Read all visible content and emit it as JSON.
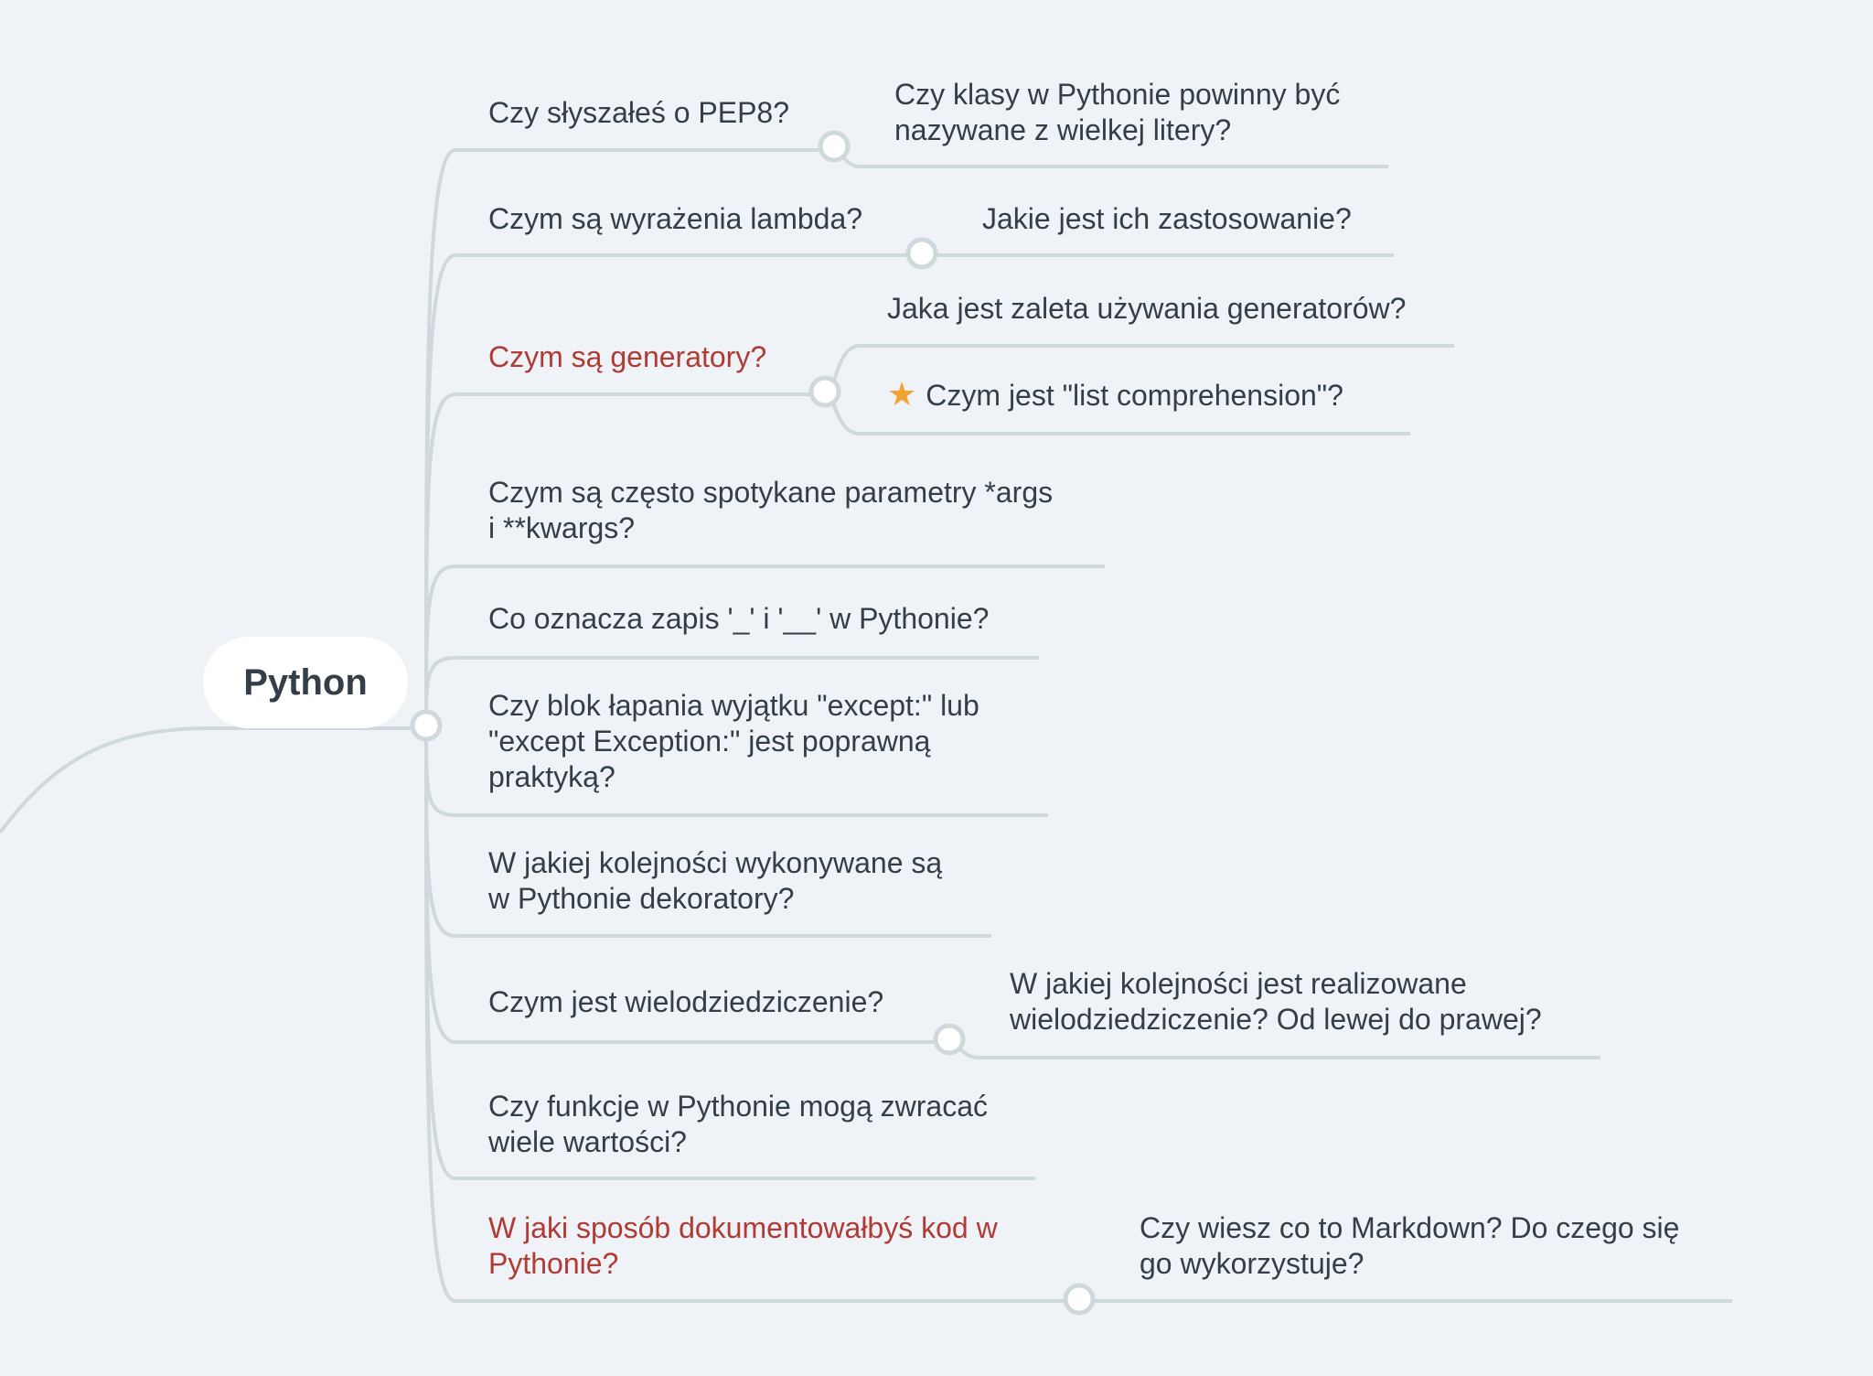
{
  "colors": {
    "background": "#eff3f7",
    "connector": "#cfd8dc",
    "text": "#333e48",
    "accent_text": "#b03a34",
    "star": "#f2a230"
  },
  "root": {
    "label": "Python"
  },
  "topics": [
    {
      "label_lines": [
        "Czy słyszałeś o PEP8?"
      ],
      "accent": false,
      "children": [
        {
          "label_lines": [
            "Czy klasy w Pythonie powinny być",
            "nazywane z wielkej litery?"
          ]
        }
      ]
    },
    {
      "label_lines": [
        "Czym są wyrażenia lambda?"
      ],
      "accent": false,
      "children": [
        {
          "label_lines": [
            "Jakie jest ich zastosowanie?"
          ]
        }
      ]
    },
    {
      "label_lines": [
        "Czym są generatory?"
      ],
      "accent": true,
      "children": [
        {
          "label_lines": [
            "Jaka jest zaleta używania generatorów?"
          ]
        },
        {
          "label_lines": [
            "Czym jest \"list comprehension\"?"
          ],
          "icon": "star-icon"
        }
      ]
    },
    {
      "label_lines": [
        "Czym są często spotykane parametry *args",
        "i **kwargs?"
      ],
      "accent": false
    },
    {
      "label_lines": [
        "Co oznacza zapis '_' i '__' w Pythonie?"
      ],
      "accent": false
    },
    {
      "label_lines": [
        "Czy blok łapania wyjątku \"except:\" lub",
        "\"except Exception:\" jest poprawną",
        "praktyką?"
      ],
      "accent": false
    },
    {
      "label_lines": [
        "W jakiej kolejności wykonywane są",
        "w Pythonie dekoratory?"
      ],
      "accent": false
    },
    {
      "label_lines": [
        "Czym jest wielodziedziczenie?"
      ],
      "accent": false,
      "children": [
        {
          "label_lines": [
            "W jakiej kolejności jest realizowane",
            "wielodziedziczenie? Od lewej do prawej?"
          ]
        }
      ]
    },
    {
      "label_lines": [
        "Czy funkcje w Pythonie mogą zwracać",
        "wiele wartości?"
      ],
      "accent": false
    },
    {
      "label_lines": [
        "W jaki sposób dokumentowałbyś kod w",
        "Pythonie?"
      ],
      "accent": true,
      "children": [
        {
          "label_lines": [
            "Czy wiesz co to Markdown? Do czego się",
            "go wykorzystuje?"
          ]
        }
      ]
    }
  ]
}
